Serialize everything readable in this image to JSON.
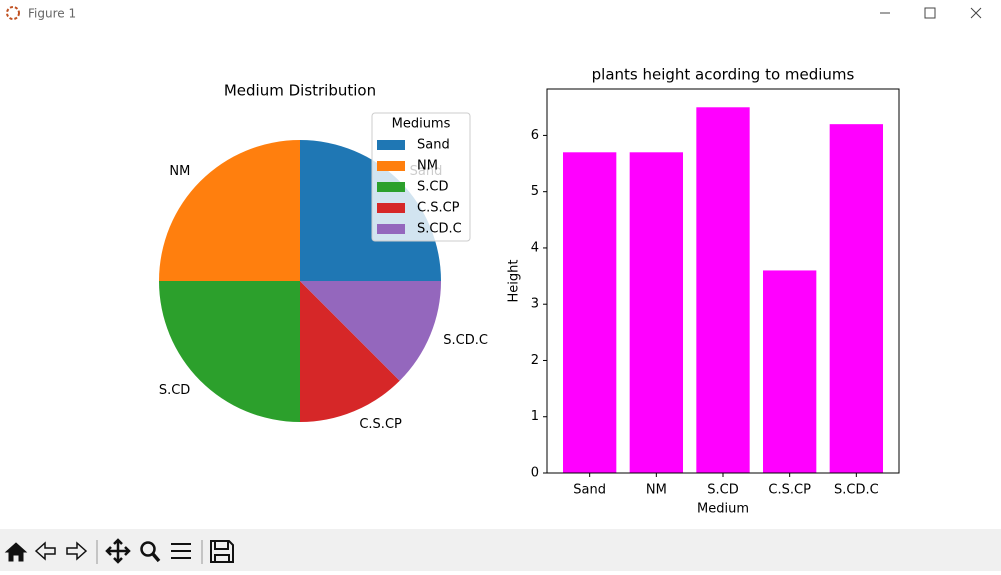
{
  "window": {
    "title": "Figure 1"
  },
  "chart_data": [
    {
      "type": "pie",
      "title": "Medium Distribution",
      "categories": [
        "Sand",
        "NM",
        "S.CD",
        "C.S.CP",
        "S.CD.C"
      ],
      "values": [
        25,
        25,
        25,
        12.5,
        12.5
      ],
      "colors": [
        "#1f77b4",
        "#ff7f0e",
        "#2ca02c",
        "#d62728",
        "#9467bd"
      ],
      "legend_title": "Mediums",
      "legend": "upper right"
    },
    {
      "type": "bar",
      "title": "plants height acording to mediums",
      "categories": [
        "Sand",
        "NM",
        "S.CD",
        "C.S.CP",
        "S.CD.C"
      ],
      "values": [
        5.7,
        5.7,
        6.5,
        3.6,
        6.2
      ],
      "color": "#ff00ff",
      "x_label": "Medium",
      "y_label": "Height",
      "ylim": [
        0,
        6.825
      ],
      "yticks": [
        0,
        1,
        2,
        3,
        4,
        5,
        6
      ]
    }
  ]
}
